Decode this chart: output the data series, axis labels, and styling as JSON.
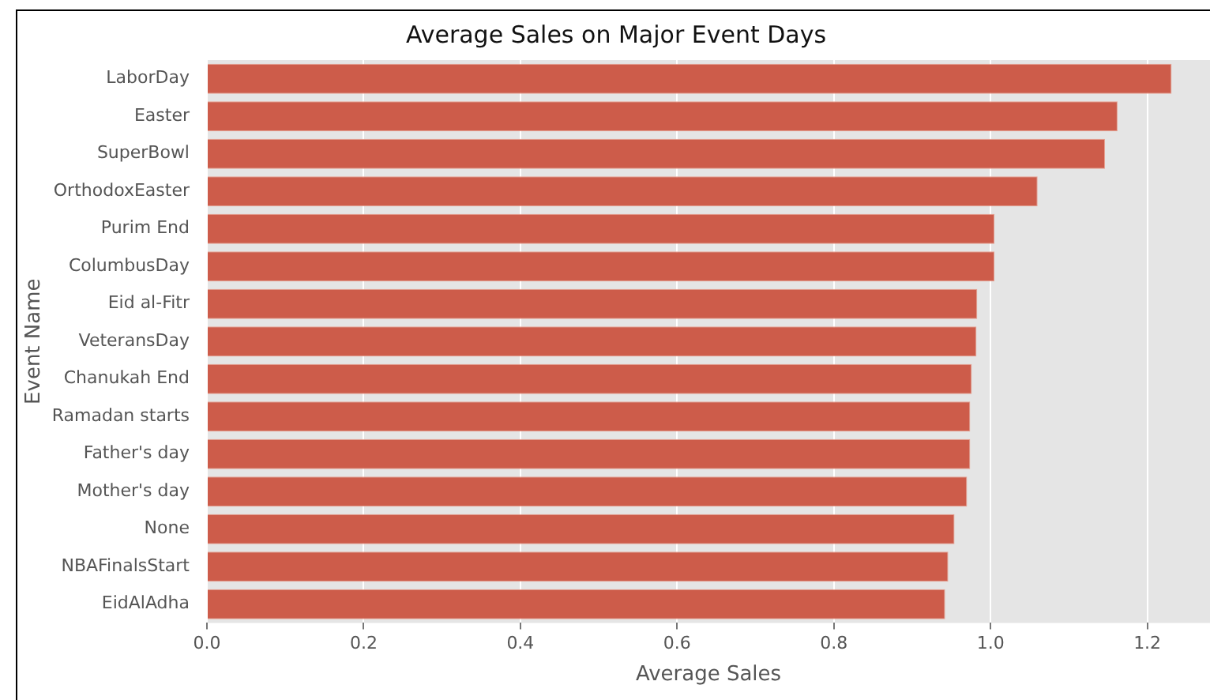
{
  "chart_data": {
    "type": "bar",
    "orientation": "horizontal",
    "title": "Average Sales on Major Event Days",
    "xlabel": "Average Sales",
    "ylabel": "Event Name",
    "categories": [
      "LaborDay",
      "Easter",
      "SuperBowl",
      "OrthodoxEaster",
      "Purim End",
      "ColumbusDay",
      "Eid al-Fitr",
      "VeteransDay",
      "Chanukah End",
      "Ramadan starts",
      "Father's day",
      "Mother's day",
      "None",
      "NBAFinalsStart",
      "EidAlAdha"
    ],
    "values": [
      1.231,
      1.162,
      1.146,
      1.06,
      1.005,
      1.005,
      0.983,
      0.982,
      0.976,
      0.974,
      0.974,
      0.97,
      0.954,
      0.946,
      0.942
    ],
    "color": "#cd5c4a",
    "xlim": [
      0,
      1.28
    ],
    "xticks": [
      {
        "value": 0,
        "label": "0.0"
      },
      0.2,
      0.4,
      0.6,
      0.8,
      {
        "value": 1,
        "label": "1.0"
      },
      1.2
    ],
    "grid": "x"
  }
}
